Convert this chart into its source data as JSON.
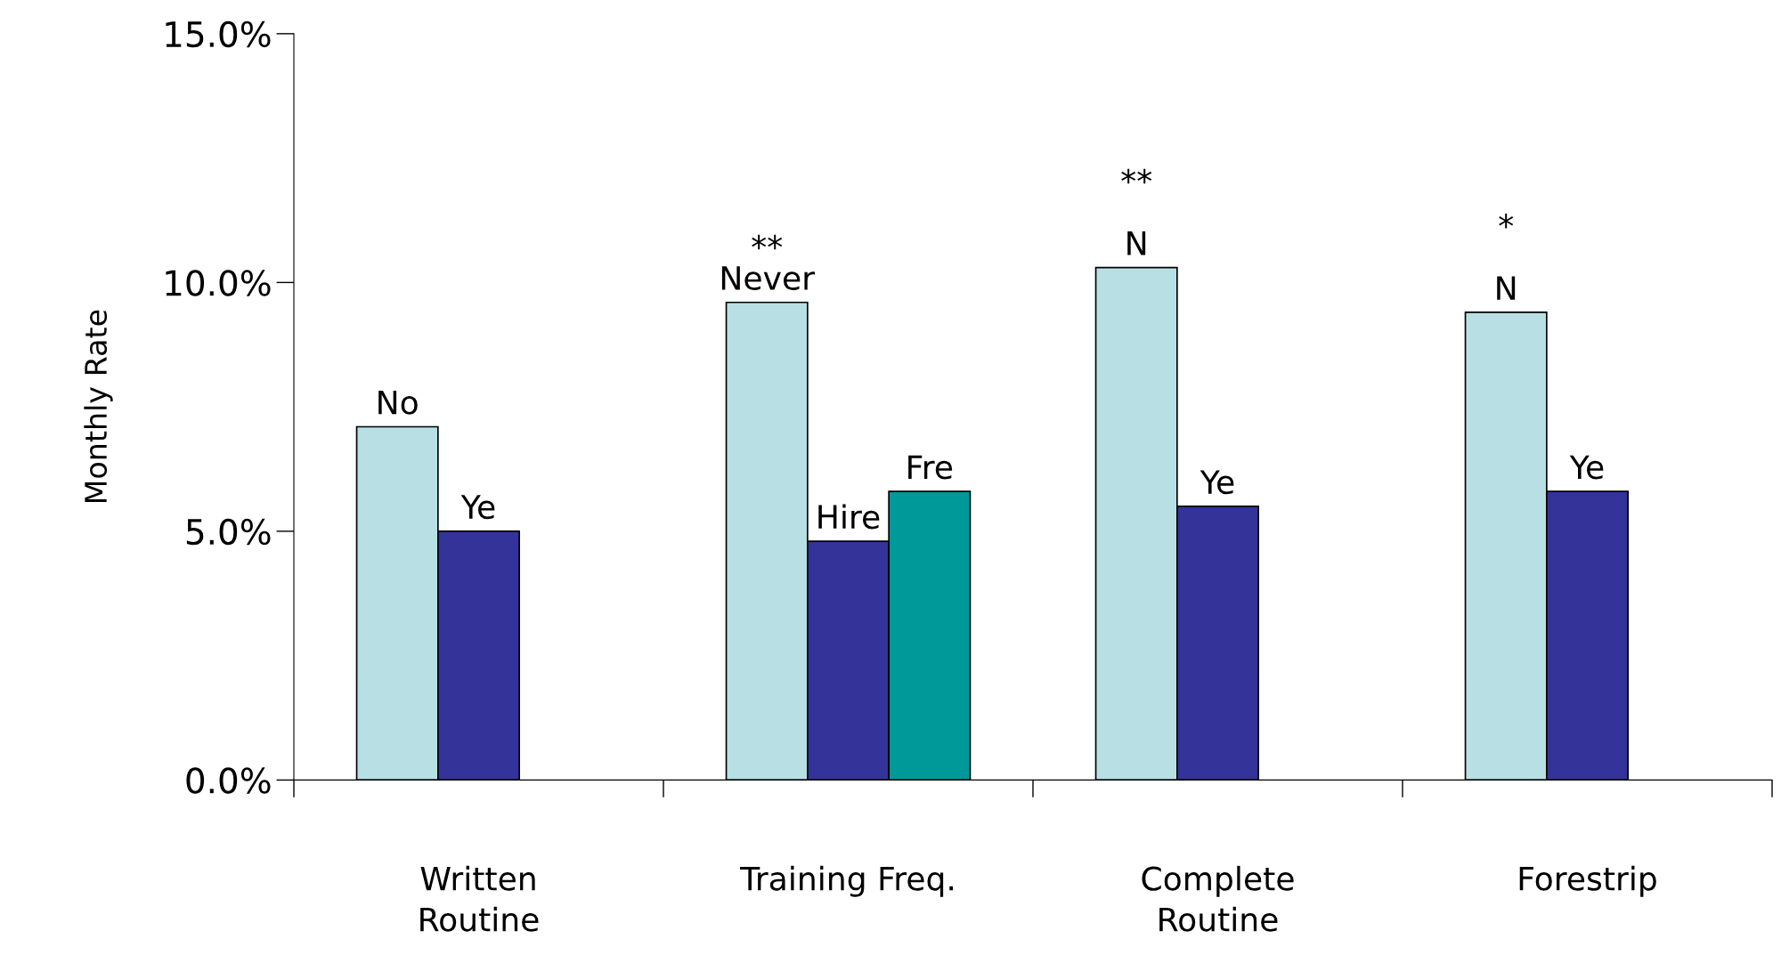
{
  "chart_data": {
    "type": "bar",
    "ylabel": "Monthly Rate",
    "categories": [
      "Written\nRoutine",
      "Training Freq.",
      "Complete\nRoutine",
      "Forestrip"
    ],
    "series": [
      {
        "color": "#b8e0e4",
        "values": [
          7.1,
          9.6,
          10.3,
          9.4
        ],
        "value_labels": [
          "No",
          "**\nNever",
          "**\n\nN",
          "*\n\nN"
        ]
      },
      {
        "color": "#333399",
        "values": [
          5.0,
          4.8,
          5.5,
          5.8
        ],
        "value_labels": [
          "Ye",
          "Hire",
          "Ye",
          "Ye"
        ]
      },
      {
        "color": "#009999",
        "values": [
          null,
          5.8,
          null,
          null
        ],
        "value_labels": [
          null,
          "Fre",
          null,
          null
        ]
      }
    ],
    "ylim": [
      0,
      15
    ],
    "yticks": [
      {
        "value": 0,
        "label": "0.0%"
      },
      {
        "value": 5,
        "label": "5.0%"
      },
      {
        "value": 10,
        "label": "10.0%"
      },
      {
        "value": 15,
        "label": "15.0%"
      }
    ],
    "grid": false
  }
}
